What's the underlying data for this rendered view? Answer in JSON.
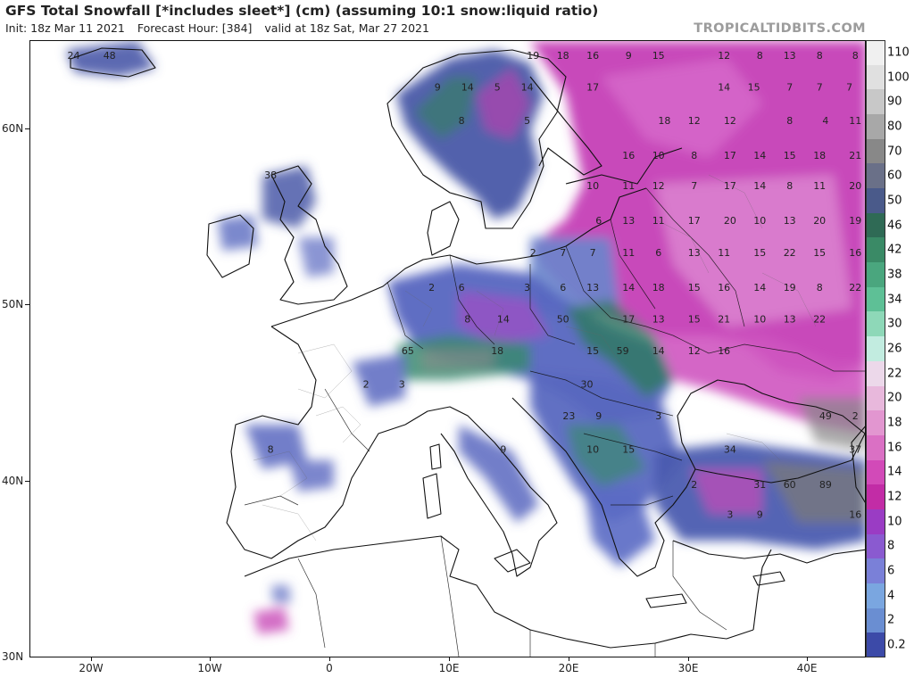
{
  "header": {
    "title": "GFS Total Snowfall [*includes sleet*] (cm) (assuming 10:1 snow:liquid ratio)",
    "init": "Init: 18z Mar 11 2021",
    "forecast_hour": "Forecast Hour: [384]",
    "valid": "valid at 18z Sat, Mar 27 2021",
    "brand": "TROPICALTIDBITS.COM"
  },
  "axes": {
    "latitudes": [
      "60N",
      "50N",
      "40N",
      "30N"
    ],
    "longitudes": [
      "20W",
      "10W",
      "0",
      "10E",
      "20E",
      "30E",
      "40E"
    ]
  },
  "colorbar": {
    "labels": [
      "110",
      "100",
      "90",
      "80",
      "70",
      "60",
      "50",
      "46",
      "42",
      "38",
      "34",
      "30",
      "26",
      "22",
      "20",
      "18",
      "16",
      "14",
      "12",
      "10",
      "8",
      "6",
      "4",
      "2",
      "0.2"
    ],
    "colors": [
      "#f0f0f0",
      "#e0e0e0",
      "#c8c8c8",
      "#a8a8a8",
      "#888888",
      "#6a7088",
      "#4a5a8a",
      "#2f6a55",
      "#3a8a66",
      "#4aa67e",
      "#5ec096",
      "#8ed8b8",
      "#c2ece0",
      "#ecd8ea",
      "#e8b8dc",
      "#e296d0",
      "#da70c4",
      "#d24ab8",
      "#c22ca6",
      "#9a3cc4",
      "#8a5ad0",
      "#7a80d8",
      "#7aa6e0",
      "#6a8ed2",
      "#3c4aa8"
    ]
  },
  "map": {
    "snow_values": [
      {
        "t": "24",
        "lon": -21.5,
        "lat": 64.0
      },
      {
        "t": "48",
        "lon": -18.5,
        "lat": 64.0
      },
      {
        "t": "19",
        "lon": 17.0,
        "lat": 64.0
      },
      {
        "t": "18",
        "lon": 19.5,
        "lat": 64.0
      },
      {
        "t": "16",
        "lon": 22.0,
        "lat": 64.0
      },
      {
        "t": "9",
        "lon": 25.0,
        "lat": 64.0
      },
      {
        "t": "15",
        "lon": 27.5,
        "lat": 64.0
      },
      {
        "t": "12",
        "lon": 33.0,
        "lat": 64.0
      },
      {
        "t": "8",
        "lon": 36.0,
        "lat": 64.0
      },
      {
        "t": "13",
        "lon": 38.5,
        "lat": 64.0
      },
      {
        "t": "8",
        "lon": 41.0,
        "lat": 64.0
      },
      {
        "t": "8",
        "lon": 44.0,
        "lat": 64.0
      },
      {
        "t": "9",
        "lon": 9.0,
        "lat": 62.2
      },
      {
        "t": "14",
        "lon": 11.5,
        "lat": 62.2
      },
      {
        "t": "5",
        "lon": 14.0,
        "lat": 62.2
      },
      {
        "t": "14",
        "lon": 16.5,
        "lat": 62.2
      },
      {
        "t": "17",
        "lon": 22.0,
        "lat": 62.2
      },
      {
        "t": "14",
        "lon": 33.0,
        "lat": 62.2
      },
      {
        "t": "15",
        "lon": 35.5,
        "lat": 62.2
      },
      {
        "t": "7",
        "lon": 38.5,
        "lat": 62.2
      },
      {
        "t": "7",
        "lon": 41.0,
        "lat": 62.2
      },
      {
        "t": "7",
        "lon": 43.5,
        "lat": 62.2
      },
      {
        "t": "8",
        "lon": 11.0,
        "lat": 60.3
      },
      {
        "t": "5",
        "lon": 16.5,
        "lat": 60.3
      },
      {
        "t": "18",
        "lon": 28.0,
        "lat": 60.3
      },
      {
        "t": "12",
        "lon": 30.5,
        "lat": 60.3
      },
      {
        "t": "12",
        "lon": 33.5,
        "lat": 60.3
      },
      {
        "t": "8",
        "lon": 38.5,
        "lat": 60.3
      },
      {
        "t": "4",
        "lon": 41.5,
        "lat": 60.3
      },
      {
        "t": "11",
        "lon": 44.0,
        "lat": 60.3
      },
      {
        "t": "16",
        "lon": 25.0,
        "lat": 58.3
      },
      {
        "t": "10",
        "lon": 27.5,
        "lat": 58.3
      },
      {
        "t": "8",
        "lon": 30.5,
        "lat": 58.3
      },
      {
        "t": "17",
        "lon": 33.5,
        "lat": 58.3
      },
      {
        "t": "14",
        "lon": 36.0,
        "lat": 58.3
      },
      {
        "t": "15",
        "lon": 38.5,
        "lat": 58.3
      },
      {
        "t": "18",
        "lon": 41.0,
        "lat": 58.3
      },
      {
        "t": "21",
        "lon": 44.0,
        "lat": 58.3
      },
      {
        "t": "38",
        "lon": -5.0,
        "lat": 57.2
      },
      {
        "t": "10",
        "lon": 22.0,
        "lat": 56.6
      },
      {
        "t": "11",
        "lon": 25.0,
        "lat": 56.6
      },
      {
        "t": "12",
        "lon": 27.5,
        "lat": 56.6
      },
      {
        "t": "7",
        "lon": 30.5,
        "lat": 56.6
      },
      {
        "t": "17",
        "lon": 33.5,
        "lat": 56.6
      },
      {
        "t": "14",
        "lon": 36.0,
        "lat": 56.6
      },
      {
        "t": "8",
        "lon": 38.5,
        "lat": 56.6
      },
      {
        "t": "11",
        "lon": 41.0,
        "lat": 56.6
      },
      {
        "t": "20",
        "lon": 44.0,
        "lat": 56.6
      },
      {
        "t": "6",
        "lon": 22.5,
        "lat": 54.6
      },
      {
        "t": "13",
        "lon": 25.0,
        "lat": 54.6
      },
      {
        "t": "11",
        "lon": 27.5,
        "lat": 54.6
      },
      {
        "t": "17",
        "lon": 30.5,
        "lat": 54.6
      },
      {
        "t": "20",
        "lon": 33.5,
        "lat": 54.6
      },
      {
        "t": "10",
        "lon": 36.0,
        "lat": 54.6
      },
      {
        "t": "13",
        "lon": 38.5,
        "lat": 54.6
      },
      {
        "t": "20",
        "lon": 41.0,
        "lat": 54.6
      },
      {
        "t": "19",
        "lon": 44.0,
        "lat": 54.6
      },
      {
        "t": "2",
        "lon": 17.0,
        "lat": 52.8
      },
      {
        "t": "7",
        "lon": 19.5,
        "lat": 52.8
      },
      {
        "t": "7",
        "lon": 22.0,
        "lat": 52.8
      },
      {
        "t": "11",
        "lon": 25.0,
        "lat": 52.8
      },
      {
        "t": "6",
        "lon": 27.5,
        "lat": 52.8
      },
      {
        "t": "13",
        "lon": 30.5,
        "lat": 52.8
      },
      {
        "t": "11",
        "lon": 33.0,
        "lat": 52.8
      },
      {
        "t": "15",
        "lon": 36.0,
        "lat": 52.8
      },
      {
        "t": "22",
        "lon": 38.5,
        "lat": 52.8
      },
      {
        "t": "15",
        "lon": 41.0,
        "lat": 52.8
      },
      {
        "t": "16",
        "lon": 44.0,
        "lat": 52.8
      },
      {
        "t": "2",
        "lon": 8.5,
        "lat": 50.8
      },
      {
        "t": "6",
        "lon": 11.0,
        "lat": 50.8
      },
      {
        "t": "3",
        "lon": 16.5,
        "lat": 50.8
      },
      {
        "t": "6",
        "lon": 19.5,
        "lat": 50.8
      },
      {
        "t": "13",
        "lon": 22.0,
        "lat": 50.8
      },
      {
        "t": "14",
        "lon": 25.0,
        "lat": 50.8
      },
      {
        "t": "18",
        "lon": 27.5,
        "lat": 50.8
      },
      {
        "t": "15",
        "lon": 30.5,
        "lat": 50.8
      },
      {
        "t": "16",
        "lon": 33.0,
        "lat": 50.8
      },
      {
        "t": "14",
        "lon": 36.0,
        "lat": 50.8
      },
      {
        "t": "19",
        "lon": 38.5,
        "lat": 50.8
      },
      {
        "t": "8",
        "lon": 41.0,
        "lat": 50.8
      },
      {
        "t": "22",
        "lon": 44.0,
        "lat": 50.8
      },
      {
        "t": "8",
        "lon": 11.5,
        "lat": 49.0
      },
      {
        "t": "14",
        "lon": 14.5,
        "lat": 49.0
      },
      {
        "t": "50",
        "lon": 19.5,
        "lat": 49.0
      },
      {
        "t": "17",
        "lon": 25.0,
        "lat": 49.0
      },
      {
        "t": "13",
        "lon": 27.5,
        "lat": 49.0
      },
      {
        "t": "15",
        "lon": 30.5,
        "lat": 49.0
      },
      {
        "t": "21",
        "lon": 33.0,
        "lat": 49.0
      },
      {
        "t": "10",
        "lon": 36.0,
        "lat": 49.0
      },
      {
        "t": "13",
        "lon": 38.5,
        "lat": 49.0
      },
      {
        "t": "22",
        "lon": 41.0,
        "lat": 49.0
      },
      {
        "t": "65",
        "lon": 6.5,
        "lat": 47.2
      },
      {
        "t": "18",
        "lon": 14.0,
        "lat": 47.2
      },
      {
        "t": "15",
        "lon": 22.0,
        "lat": 47.2
      },
      {
        "t": "59",
        "lon": 24.5,
        "lat": 47.2
      },
      {
        "t": "14",
        "lon": 27.5,
        "lat": 47.2
      },
      {
        "t": "12",
        "lon": 30.5,
        "lat": 47.2
      },
      {
        "t": "16",
        "lon": 33.0,
        "lat": 47.2
      },
      {
        "t": "2",
        "lon": 3.0,
        "lat": 45.3
      },
      {
        "t": "3",
        "lon": 6.0,
        "lat": 45.3
      },
      {
        "t": "30",
        "lon": 21.5,
        "lat": 45.3
      },
      {
        "t": "23",
        "lon": 20.0,
        "lat": 43.5
      },
      {
        "t": "9",
        "lon": 22.5,
        "lat": 43.5
      },
      {
        "t": "3",
        "lon": 27.5,
        "lat": 43.5
      },
      {
        "t": "49",
        "lon": 41.5,
        "lat": 43.5
      },
      {
        "t": "2",
        "lon": 44.0,
        "lat": 43.5
      },
      {
        "t": "8",
        "lon": -5.0,
        "lat": 41.6
      },
      {
        "t": "9",
        "lon": 14.5,
        "lat": 41.6
      },
      {
        "t": "10",
        "lon": 22.0,
        "lat": 41.6
      },
      {
        "t": "15",
        "lon": 25.0,
        "lat": 41.6
      },
      {
        "t": "34",
        "lon": 33.5,
        "lat": 41.6
      },
      {
        "t": "37",
        "lon": 44.0,
        "lat": 41.6
      },
      {
        "t": "2",
        "lon": 30.5,
        "lat": 39.6
      },
      {
        "t": "31",
        "lon": 36.0,
        "lat": 39.6
      },
      {
        "t": "60",
        "lon": 38.5,
        "lat": 39.6
      },
      {
        "t": "89",
        "lon": 41.5,
        "lat": 39.6
      },
      {
        "t": "3",
        "lon": 33.5,
        "lat": 37.9
      },
      {
        "t": "9",
        "lon": 36.0,
        "lat": 37.9
      },
      {
        "t": "16",
        "lon": 44.0,
        "lat": 37.9
      }
    ]
  }
}
